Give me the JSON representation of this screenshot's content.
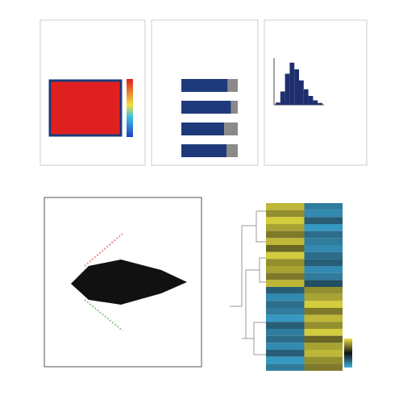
{
  "chart_data": [
    {
      "type": "stacked-hbar",
      "xlim": [
        0,
        100
      ],
      "series": [
        {
          "color": "#1f3a7a",
          "values": [
            82,
            88,
            76,
            80
          ]
        },
        {
          "color": "#8a8a8a",
          "values": [
            18,
            12,
            24,
            20
          ]
        }
      ]
    },
    {
      "type": "histogram",
      "color": "#1f2f6e",
      "bins": [
        0,
        1,
        2,
        3,
        4,
        5,
        6,
        7,
        8,
        9,
        10
      ],
      "values": [
        5,
        30,
        70,
        95,
        80,
        55,
        35,
        20,
        10,
        4
      ],
      "ylim": [
        0,
        100
      ]
    },
    {
      "type": "heatmap",
      "values": [
        [
          0.8,
          -0.7
        ],
        [
          0.6,
          -0.8
        ],
        [
          0.9,
          -0.5
        ],
        [
          0.7,
          -0.9
        ],
        [
          0.5,
          -0.6
        ],
        [
          0.8,
          -0.7
        ],
        [
          0.4,
          -0.8
        ],
        [
          0.9,
          -0.6
        ],
        [
          0.6,
          -0.5
        ],
        [
          0.7,
          -0.8
        ],
        [
          0.5,
          -0.7
        ],
        [
          0.8,
          -0.4
        ],
        [
          -0.5,
          0.6
        ],
        [
          -0.8,
          0.7
        ],
        [
          -0.6,
          0.9
        ],
        [
          -0.7,
          0.5
        ],
        [
          -0.9,
          0.8
        ],
        [
          -0.5,
          0.6
        ],
        [
          -0.7,
          0.9
        ],
        [
          -0.6,
          0.4
        ],
        [
          -0.8,
          0.7
        ],
        [
          -0.5,
          0.8
        ],
        [
          -0.9,
          0.6
        ],
        [
          -0.7,
          0.5
        ]
      ]
    }
  ]
}
